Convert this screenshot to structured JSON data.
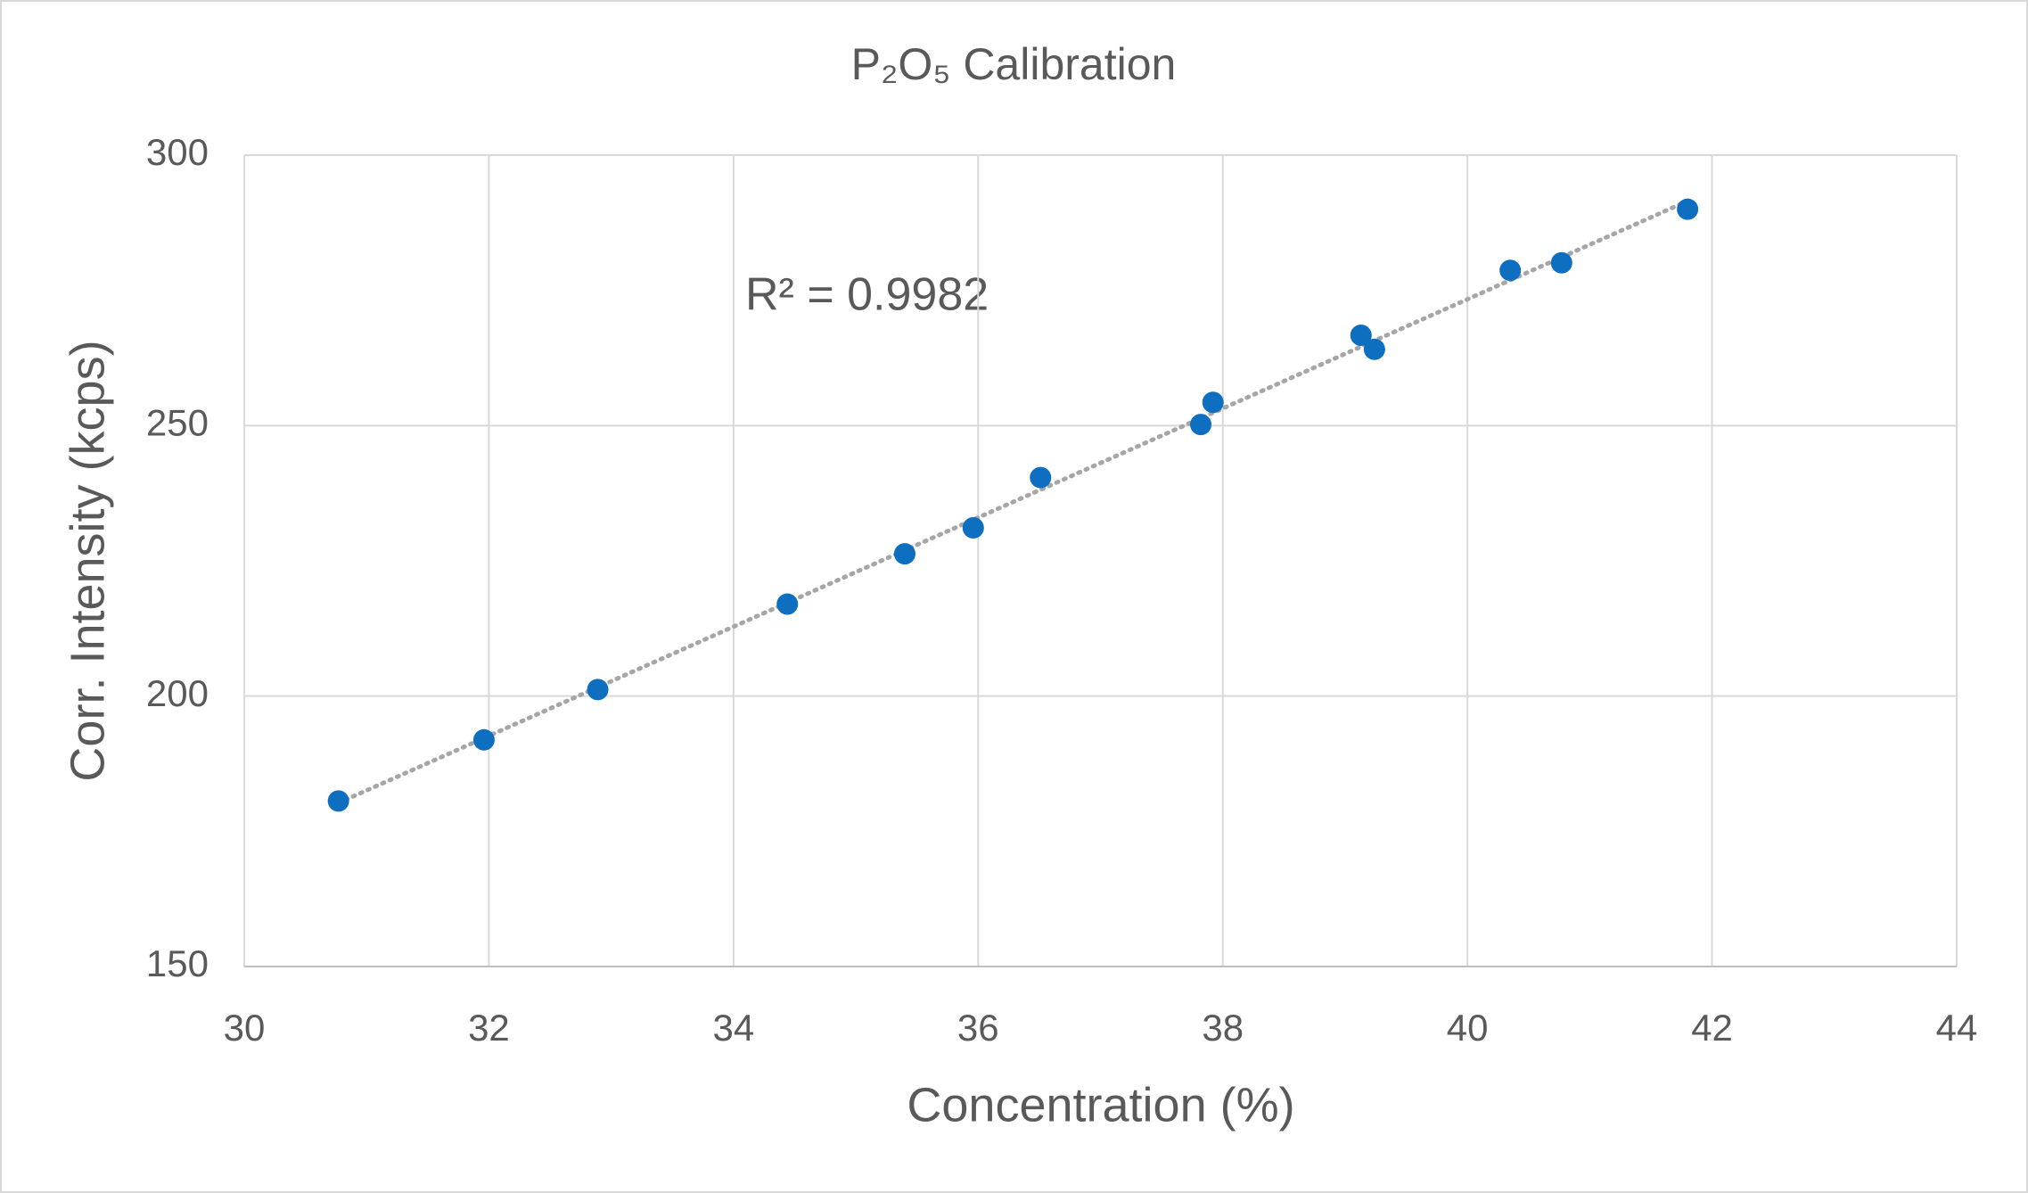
{
  "chart_data": {
    "type": "scatter",
    "title": "P₂O₅ Calibration",
    "x_label": "Concentration (%)",
    "y_label": "Corr. Intensity (kcps)",
    "annotation": "R² = 0.9982",
    "series": [
      {
        "color": "#0e6fc1",
        "x": [
          30.77,
          31.96,
          32.89,
          34.44,
          35.4,
          35.96,
          36.51,
          37.82,
          37.92,
          39.13,
          39.24,
          40.35,
          40.77,
          41.8
        ],
        "values": [
          180.6,
          191.9,
          201.2,
          217.0,
          226.3,
          231.1,
          240.4,
          250.2,
          254.3,
          266.7,
          264.1,
          278.7,
          280.1,
          290.0
        ]
      }
    ],
    "trendline": "linear",
    "trendline_color": "#a6a6a6",
    "xlim": [
      30,
      44
    ],
    "xticks": [
      30,
      32,
      34,
      36,
      38,
      40,
      42,
      44
    ],
    "ylim": [
      150,
      300
    ],
    "yticks": [
      150,
      200,
      250,
      300
    ],
    "grid": true
  }
}
